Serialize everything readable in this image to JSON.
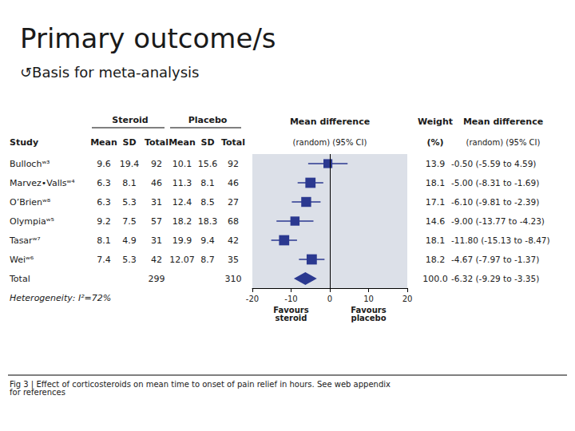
{
  "chart_data": {
    "type": "forest",
    "title": "Primary outcome/s",
    "subtitle": "↺Basis for meta-analysis",
    "caption": "Fig 3 | Effect of corticosteroids on mean time to onset of pain relief in hours. See web appendix\nfor references",
    "categories": [
      "Bullochʷ³",
      "Marvez•Vallsʷ⁴",
      "O’Brienʷ⁸",
      "Olympiaʷ⁵",
      "Tasarʷ⁷",
      "Weiʷ⁶"
    ],
    "values": [
      -0.5,
      -5.0,
      -6.1,
      -9.0,
      -11.8,
      -4.67
    ],
    "ci_low": [
      -5.59,
      -8.31,
      -9.81,
      -13.77,
      -15.13,
      -7.97
    ],
    "ci_high": [
      4.59,
      -1.69,
      -2.39,
      -4.23,
      -8.47,
      -1.37
    ],
    "weight": [
      13.9,
      18.1,
      17.1,
      14.6,
      18.1,
      18.2
    ],
    "total": {
      "label": "Total",
      "value": -6.32,
      "ci_low": -9.29,
      "ci_high": -3.35
    },
    "color": "#2b3990",
    "plot_background": "#dce0e8",
    "xlim": [
      -20,
      20
    ],
    "xticks": [
      -20,
      -10,
      0,
      10,
      20
    ],
    "reference_x": 0,
    "grid": false,
    "plot_header": [
      "Mean difference",
      "(random) (95% CI)"
    ],
    "row_header": "Study",
    "left_columns": [
      {
        "group": "Steroid",
        "header": "Mean",
        "values": [
          "9.6",
          "6.3",
          "6.3",
          "9.2",
          "8.1",
          "7.4"
        ]
      },
      {
        "group": "Steroid",
        "header": "SD",
        "values": [
          "19.4",
          "8.1",
          "5.3",
          "7.5",
          "4.9",
          "5.3"
        ]
      },
      {
        "group": "Steroid",
        "header": "Total",
        "values": [
          "92",
          "46",
          "31",
          "57",
          "31",
          "42"
        ],
        "total": "299"
      },
      {
        "group": "Placebo",
        "header": "Mean",
        "values": [
          "10.1",
          "11.3",
          "12.4",
          "18.2",
          "19.9",
          "12.07"
        ]
      },
      {
        "group": "Placebo",
        "header": "SD",
        "values": [
          "15.6",
          "8.1",
          "8.5",
          "18.3",
          "9.4",
          "8.7"
        ]
      },
      {
        "group": "Placebo",
        "header": "Total",
        "values": [
          "92",
          "46",
          "27",
          "68",
          "42",
          "35"
        ],
        "total": "310"
      }
    ],
    "right_columns": [
      {
        "header": [
          "Weight",
          "(%)"
        ],
        "values": [
          "13.9",
          "18.1",
          "17.1",
          "14.6",
          "18.1",
          "18.2"
        ],
        "total": "100.0"
      },
      {
        "header": [
          "Mean difference",
          "(random) (95% CI)"
        ],
        "values": [
          "-0.50 (-5.59 to 4.59)",
          "-5.00 (-8.31 to -1.69)",
          "-6.10 (-9.81 to -2.39)",
          "-9.00 (-13.77 to -4.23)",
          "-11.80 (-15.13 to -8.47)",
          "-4.67 (-7.97 to -1.37)"
        ],
        "total": "-6.32 (-9.29 to -3.35)"
      }
    ],
    "heterogeneity": "Heterogeneity: I²=72%",
    "annotations": [
      {
        "text": "Favours\nsteroid",
        "x": -10
      },
      {
        "text": "Favours\nplacebo",
        "x": 10
      }
    ]
  }
}
